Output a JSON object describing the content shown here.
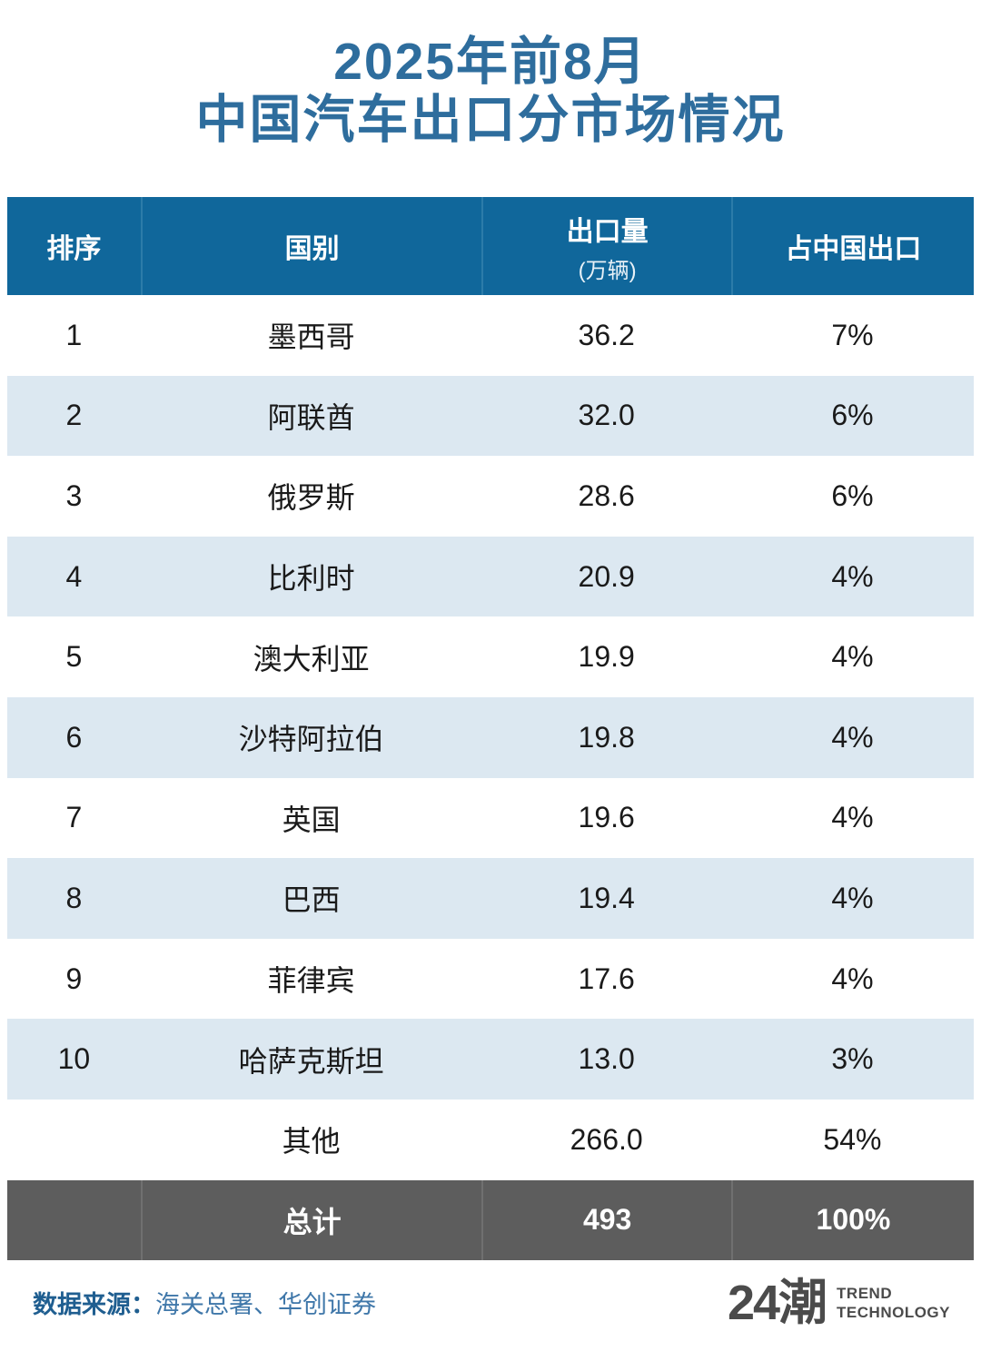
{
  "title": {
    "line1": "2025年前8月",
    "line2": "中国汽车出口分市场情况"
  },
  "table": {
    "headers": {
      "rank": "排序",
      "country": "国别",
      "volume": "出口量",
      "volume_unit": "(万辆)",
      "share": "占中国出口"
    },
    "rows": [
      {
        "rank": "1",
        "country": "墨西哥",
        "volume": "36.2",
        "share": "7%"
      },
      {
        "rank": "2",
        "country": "阿联酋",
        "volume": "32.0",
        "share": "6%"
      },
      {
        "rank": "3",
        "country": "俄罗斯",
        "volume": "28.6",
        "share": "6%"
      },
      {
        "rank": "4",
        "country": "比利时",
        "volume": "20.9",
        "share": "4%"
      },
      {
        "rank": "5",
        "country": "澳大利亚",
        "volume": "19.9",
        "share": "4%"
      },
      {
        "rank": "6",
        "country": "沙特阿拉伯",
        "volume": "19.8",
        "share": "4%"
      },
      {
        "rank": "7",
        "country": "英国",
        "volume": "19.6",
        "share": "4%"
      },
      {
        "rank": "8",
        "country": "巴西",
        "volume": "19.4",
        "share": "4%"
      },
      {
        "rank": "9",
        "country": "菲律宾",
        "volume": "17.6",
        "share": "4%"
      },
      {
        "rank": "10",
        "country": "哈萨克斯坦",
        "volume": "13.0",
        "share": "3%"
      },
      {
        "rank": "",
        "country": "其他",
        "volume": "266.0",
        "share": "54%"
      }
    ],
    "total": {
      "rank": "",
      "label": "总计",
      "volume": "493",
      "share": "100%"
    }
  },
  "footer": {
    "source_label": "数据来源：",
    "source_value": "海关总署、华创证券",
    "logo_text": "24潮",
    "logo_line1": "TREND",
    "logo_line2": "TECHNOLOGY"
  },
  "colors": {
    "title_blue": "#2e6d9d",
    "header_bg": "#10679b",
    "row_alt_bg": "#dce8f1",
    "total_bg": "#5d5d5d",
    "source_label": "#1f5e90",
    "source_value": "#3f77a9",
    "logo_gray": "#4b4b4b"
  },
  "chart_data": {
    "type": "table",
    "title": "2025年前8月 中国汽车出口分市场情况",
    "columns": [
      "排序",
      "国别",
      "出口量(万辆)",
      "占中国出口"
    ],
    "categories": [
      "墨西哥",
      "阿联酋",
      "俄罗斯",
      "比利时",
      "澳大利亚",
      "沙特阿拉伯",
      "英国",
      "巴西",
      "菲律宾",
      "哈萨克斯坦",
      "其他",
      "总计"
    ],
    "series": [
      {
        "name": "出口量(万辆)",
        "values": [
          36.2,
          32.0,
          28.6,
          20.9,
          19.9,
          19.8,
          19.6,
          19.4,
          17.6,
          13.0,
          266.0,
          493
        ]
      },
      {
        "name": "占中国出口",
        "values": [
          "7%",
          "6%",
          "6%",
          "4%",
          "4%",
          "4%",
          "4%",
          "4%",
          "4%",
          "3%",
          "54%",
          "100%"
        ]
      }
    ],
    "source": "海关总署、华创证券"
  }
}
